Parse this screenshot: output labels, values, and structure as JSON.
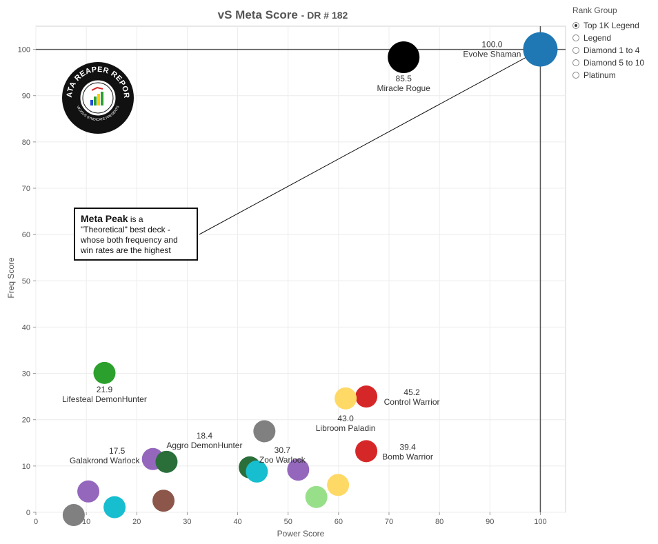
{
  "title": {
    "main": "vS Meta Score",
    "sub": "DR # 182"
  },
  "legend": {
    "title": "Rank Group",
    "items": [
      "Top 1K Legend",
      "Legend",
      "Diamond 1 to 4",
      "Diamond 5 to 10",
      "Platinum"
    ],
    "selected": "Top 1K Legend"
  },
  "annotation": {
    "bold": "Meta Peak",
    "text1": " is a",
    "text2": "\"Theoretical\" best deck -",
    "text3": "whose both frequency and",
    "text4": "win rates are the highest"
  },
  "logo": {
    "text_top": "DATA REAPER REPORT",
    "text_bottom": "VICIOUS SYNDICATE PRESENTS"
  },
  "chart_data": {
    "type": "scatter",
    "xlabel": "Power Score",
    "ylabel": "Freq Score",
    "xlim": [
      0,
      105
    ],
    "ylim": [
      0,
      105
    ],
    "xticks": [
      0,
      10,
      20,
      30,
      40,
      50,
      60,
      70,
      80,
      90,
      100
    ],
    "yticks": [
      0,
      10,
      20,
      30,
      40,
      50,
      60,
      70,
      80,
      90,
      100
    ],
    "grid": true,
    "reference_lines": {
      "x": 100,
      "y": 100
    },
    "points": [
      {
        "x": 100,
        "y": 100,
        "label": "Evolve Shaman",
        "score": "100.0",
        "color": "#1f77b4"
      },
      {
        "x": 72.9,
        "y": 98.3,
        "label": "Miracle Rogue",
        "score": "85.5",
        "color": "#000000"
      },
      {
        "x": 13.6,
        "y": 30.1,
        "label": "Lifesteal DemonHunter",
        "score": "21.9",
        "color": "#2ca02c"
      },
      {
        "x": 65.5,
        "y": 25.0,
        "label": "Control Warrior",
        "score": "45.2",
        "color": "#d62728"
      },
      {
        "x": 61.4,
        "y": 24.6,
        "label": "Libroom Paladin",
        "score": "43.0",
        "color": "#ffd966"
      },
      {
        "x": 45.3,
        "y": 17.5,
        "label": "",
        "score": "",
        "color": "#808080"
      },
      {
        "x": 65.5,
        "y": 13.2,
        "label": "Bomb Warrior",
        "score": "39.4",
        "color": "#d62728"
      },
      {
        "x": 52.0,
        "y": 9.2,
        "label": "Zoo Warlock",
        "score": "30.7",
        "color": "#9467bd"
      },
      {
        "x": 23.2,
        "y": 11.5,
        "label": "Galakrond Warlock",
        "score": "17.5",
        "color": "#9467bd"
      },
      {
        "x": 25.9,
        "y": 10.9,
        "label": "Aggro DemonHunter",
        "score": "18.4",
        "color": "#2a6e3a"
      },
      {
        "x": 42.4,
        "y": 9.7,
        "label": "",
        "score": "",
        "color": "#2a6e3a"
      },
      {
        "x": 43.8,
        "y": 8.8,
        "label": "",
        "score": "",
        "color": "#17becf"
      },
      {
        "x": 59.9,
        "y": 5.9,
        "label": "",
        "score": "",
        "color": "#ffd966"
      },
      {
        "x": 55.6,
        "y": 3.3,
        "label": "",
        "score": "",
        "color": "#98df8a"
      },
      {
        "x": 10.4,
        "y": 4.5,
        "label": "",
        "score": "",
        "color": "#9467bd"
      },
      {
        "x": 25.3,
        "y": 2.5,
        "label": "",
        "score": "",
        "color": "#8c564b"
      },
      {
        "x": 15.6,
        "y": 1.1,
        "label": "",
        "score": "",
        "color": "#17becf"
      },
      {
        "x": 7.5,
        "y": -0.6,
        "label": "",
        "score": "",
        "color": "#808080"
      }
    ]
  }
}
